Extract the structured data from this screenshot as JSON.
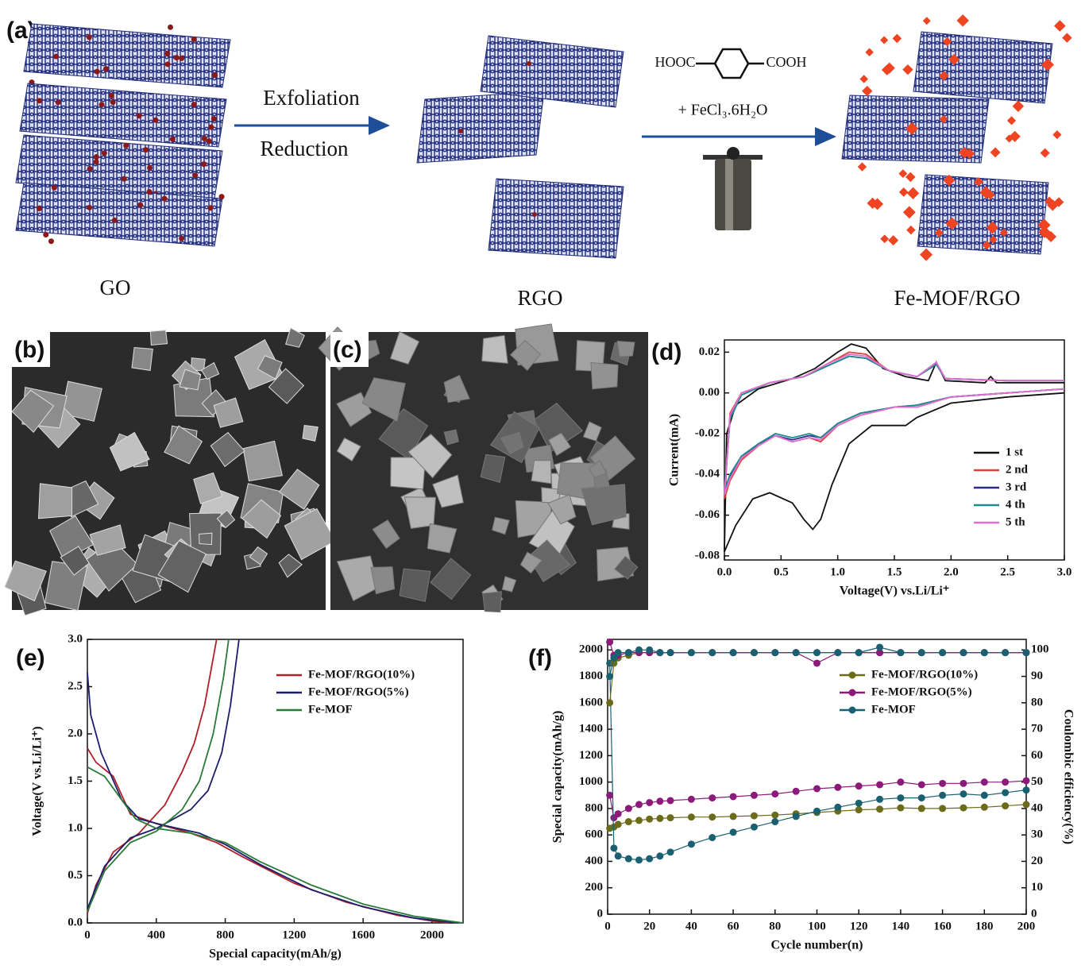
{
  "panels": {
    "a": {
      "label": "(a)",
      "arrow1_top": "Exfoliation",
      "arrow1_bottom": "Reduction",
      "reagent_left": "HOOC",
      "reagent_right": "COOH",
      "reagent_salt": "+ FeCl₃.6H₂O",
      "stage1": "GO",
      "stage2": "RGO",
      "stage3": "Fe-MOF/RGO"
    },
    "b": {
      "label": "(b)"
    },
    "c": {
      "label": "(c)"
    }
  },
  "chart_data": [
    {
      "type": "line",
      "panel_label": "(d)",
      "xlabel": "Voltage(V) vs.Li/Li⁺",
      "ylabel": "Current(mA)",
      "xlim": [
        0,
        3
      ],
      "ylim": [
        -0.082,
        0.026
      ],
      "xticks": [
        {
          "value": 0,
          "label": "0.0"
        },
        0.5,
        {
          "value": 1,
          "label": "1.0"
        },
        1.5,
        {
          "value": 2,
          "label": "2.0"
        },
        2.5,
        {
          "value": 3,
          "label": "3.0"
        }
      ],
      "yticks": [
        0.02,
        {
          "value": 0,
          "label": "0.00"
        },
        -0.02,
        -0.04,
        -0.06,
        -0.08
      ],
      "legend": "lower right",
      "x": [
        3.0,
        2.5,
        2.0,
        1.7,
        1.5,
        1.2,
        1.0,
        0.85,
        0.75,
        0.6,
        0.45,
        0.3,
        0.15,
        0.05,
        0.0,
        0.05,
        0.15,
        0.4,
        0.7,
        0.9,
        1.1,
        1.25,
        1.45,
        1.7,
        1.87,
        1.95,
        2.5,
        3.0
      ],
      "series": [
        {
          "name": "1 st",
          "color": "#111111",
          "x": [
            3.0,
            2.5,
            2.0,
            1.7,
            1.6,
            1.3,
            1.1,
            0.95,
            0.85,
            0.78,
            0.7,
            0.6,
            0.4,
            0.25,
            0.1,
            0.0,
            0.02,
            0.1,
            0.3,
            0.6,
            0.8,
            1.0,
            1.12,
            1.25,
            1.4,
            1.6,
            1.8,
            1.87,
            1.95,
            2.3,
            2.35,
            2.4,
            3.0
          ],
          "values": [
            0.0,
            -0.002,
            -0.005,
            -0.012,
            -0.016,
            -0.016,
            -0.025,
            -0.045,
            -0.062,
            -0.067,
            -0.062,
            -0.054,
            -0.049,
            -0.052,
            -0.065,
            -0.078,
            -0.02,
            -0.006,
            0.002,
            0.007,
            0.012,
            0.02,
            0.024,
            0.022,
            0.012,
            0.008,
            0.006,
            0.015,
            0.006,
            0.005,
            0.008,
            0.005,
            0.005
          ]
        },
        {
          "name": "2 nd",
          "color": "#e0403a",
          "values": [
            0.002,
            0.0,
            -0.002,
            -0.007,
            -0.007,
            -0.011,
            -0.016,
            -0.024,
            -0.022,
            -0.024,
            -0.021,
            -0.026,
            -0.033,
            -0.043,
            -0.052,
            -0.01,
            0.0,
            0.005,
            0.008,
            0.014,
            0.02,
            0.019,
            0.011,
            0.008,
            0.015,
            0.007,
            0.006,
            0.006
          ]
        },
        {
          "name": "3 rd",
          "color": "#2b2b8c",
          "values": [
            0.002,
            0.0,
            -0.002,
            -0.006,
            -0.007,
            -0.01,
            -0.015,
            -0.022,
            -0.021,
            -0.023,
            -0.021,
            -0.025,
            -0.032,
            -0.041,
            -0.05,
            -0.012,
            -0.001,
            0.005,
            0.008,
            0.013,
            0.018,
            0.017,
            0.011,
            0.008,
            0.014,
            0.007,
            0.006,
            0.006
          ]
        },
        {
          "name": "4 th",
          "color": "#1f8a8a",
          "values": [
            0.002,
            0.0,
            -0.002,
            -0.006,
            -0.007,
            -0.01,
            -0.015,
            -0.022,
            -0.02,
            -0.022,
            -0.02,
            -0.025,
            -0.031,
            -0.04,
            -0.048,
            -0.013,
            -0.001,
            0.005,
            0.008,
            0.013,
            0.018,
            0.017,
            0.011,
            0.008,
            0.014,
            0.007,
            0.006,
            0.006
          ]
        },
        {
          "name": "5 th",
          "color": "#e070d0",
          "values": [
            0.002,
            0.0,
            -0.002,
            -0.007,
            -0.007,
            -0.011,
            -0.016,
            -0.023,
            -0.022,
            -0.024,
            -0.021,
            -0.026,
            -0.032,
            -0.042,
            -0.05,
            -0.011,
            0.0,
            0.005,
            0.008,
            0.014,
            0.019,
            0.018,
            0.011,
            0.008,
            0.015,
            0.007,
            0.006,
            0.006
          ]
        }
      ]
    },
    {
      "type": "line",
      "panel_label": "(e)",
      "xlabel": "Special capacity(mAh/g)",
      "ylabel": "Voltage(V vs.Li/Li⁺)",
      "xlim": [
        0,
        2180
      ],
      "ylim": [
        0,
        3
      ],
      "xticks": [
        0,
        400,
        800,
        1200,
        1600,
        2000
      ],
      "yticks": [
        {
          "value": 0,
          "label": "0.0"
        },
        0.5,
        {
          "value": 1,
          "label": "1.0"
        },
        1.5,
        {
          "value": 2,
          "label": "2.0"
        },
        2.5,
        {
          "value": 3,
          "label": "3.0"
        }
      ],
      "legend": "upper right",
      "series": [
        {
          "name": "Fe-MOF/RGO(10%)",
          "color": "#b0202a",
          "x": [
            0,
            50,
            150,
            250,
            400,
            600,
            750,
            900,
            1200,
            1500,
            1800,
            2000,
            2100,
            null,
            0,
            50,
            150,
            300,
            450,
            550,
            620,
            680,
            720,
            750
          ],
          "values": [
            1.85,
            1.7,
            1.55,
            1.15,
            1.05,
            0.95,
            0.85,
            0.7,
            0.42,
            0.22,
            0.08,
            0.02,
            0,
            null,
            0.1,
            0.4,
            0.75,
            0.95,
            1.25,
            1.6,
            1.9,
            2.3,
            2.7,
            3.0
          ]
        },
        {
          "name": "Fe-MOF/RGO(5%)",
          "color": "#1c1c6e",
          "x": [
            0,
            20,
            80,
            200,
            300,
            450,
            650,
            800,
            1000,
            1300,
            1600,
            1900,
            2150,
            null,
            0,
            100,
            250,
            400,
            600,
            700,
            780,
            830,
            880
          ],
          "values": [
            2.65,
            2.2,
            1.8,
            1.3,
            1.1,
            1.03,
            0.95,
            0.83,
            0.62,
            0.35,
            0.17,
            0.05,
            0,
            null,
            0.15,
            0.6,
            0.9,
            1.0,
            1.2,
            1.4,
            1.8,
            2.3,
            3.0
          ]
        },
        {
          "name": "Fe-MOF",
          "color": "#2a7a3a",
          "x": [
            0,
            100,
            200,
            280,
            400,
            600,
            800,
            1000,
            1300,
            1600,
            1900,
            2180,
            null,
            0,
            100,
            250,
            400,
            550,
            650,
            730,
            790,
            820
          ],
          "values": [
            1.65,
            1.55,
            1.3,
            1.1,
            1.0,
            0.95,
            0.85,
            0.65,
            0.4,
            0.2,
            0.07,
            0,
            null,
            0.12,
            0.55,
            0.85,
            0.97,
            1.2,
            1.5,
            2.0,
            2.6,
            3.0
          ]
        }
      ]
    },
    {
      "type": "line",
      "panel_label": "(f)",
      "xlabel": "Cycle number(n)",
      "ylabel": "Special capacity(mAh/g)",
      "y2label": "Coulombic efficiency(%)",
      "xlim": [
        0,
        200
      ],
      "ylim": [
        0,
        2080
      ],
      "y2lim": [
        0,
        104
      ],
      "markers": true,
      "xticks": [
        0,
        20,
        40,
        60,
        80,
        100,
        120,
        140,
        160,
        180,
        200
      ],
      "yticks": [
        0,
        200,
        400,
        600,
        800,
        1000,
        1200,
        1400,
        1600,
        1800,
        2000
      ],
      "y2ticks": [
        0,
        10,
        20,
        30,
        40,
        50,
        60,
        70,
        80,
        90,
        100
      ],
      "legend": "upper right",
      "x": [
        1,
        3,
        5,
        10,
        15,
        20,
        25,
        30,
        40,
        50,
        60,
        70,
        80,
        90,
        100,
        110,
        120,
        130,
        140,
        150,
        160,
        170,
        180,
        190,
        200
      ],
      "series": [
        {
          "name": "Fe-MOF/RGO(10%)",
          "color": "#6b6b1a",
          "values": [
            650,
            660,
            680,
            700,
            710,
            720,
            725,
            730,
            735,
            735,
            740,
            745,
            750,
            760,
            770,
            780,
            790,
            795,
            805,
            800,
            800,
            805,
            810,
            820,
            830
          ]
        },
        {
          "name": "Fe-MOF/RGO(5%)",
          "color": "#8b1a7a",
          "values": [
            900,
            730,
            760,
            800,
            830,
            845,
            855,
            860,
            870,
            880,
            890,
            900,
            910,
            930,
            950,
            960,
            970,
            980,
            1000,
            980,
            990,
            990,
            1000,
            1000,
            1010
          ]
        },
        {
          "name": "Fe-MOF",
          "color": "#1a6070",
          "values": [
            1900,
            500,
            440,
            420,
            410,
            420,
            440,
            470,
            530,
            580,
            620,
            660,
            700,
            740,
            780,
            810,
            840,
            870,
            880,
            880,
            900,
            910,
            900,
            920,
            940
          ]
        },
        {
          "color": "#6b6b1a",
          "axis": "y2",
          "values": [
            80,
            95,
            97,
            98,
            99,
            99,
            99,
            99,
            99,
            99,
            99,
            99,
            99,
            99,
            99,
            99,
            99,
            99,
            99,
            99,
            99,
            99,
            99,
            99,
            99
          ]
        },
        {
          "color": "#8b1a7a",
          "axis": "y2",
          "values": [
            103,
            98,
            98,
            99,
            99,
            99,
            99,
            99,
            99,
            99,
            99,
            99,
            99,
            99,
            95,
            99,
            99,
            99,
            99,
            99,
            99,
            99,
            99,
            99,
            99
          ]
        },
        {
          "color": "#1a6070",
          "axis": "y2",
          "values": [
            90,
            97,
            99,
            99,
            100,
            100,
            99,
            99,
            99,
            99,
            99,
            99,
            99,
            99,
            99,
            99,
            99,
            101,
            99,
            99,
            99,
            99,
            99,
            99,
            99
          ]
        }
      ]
    }
  ]
}
